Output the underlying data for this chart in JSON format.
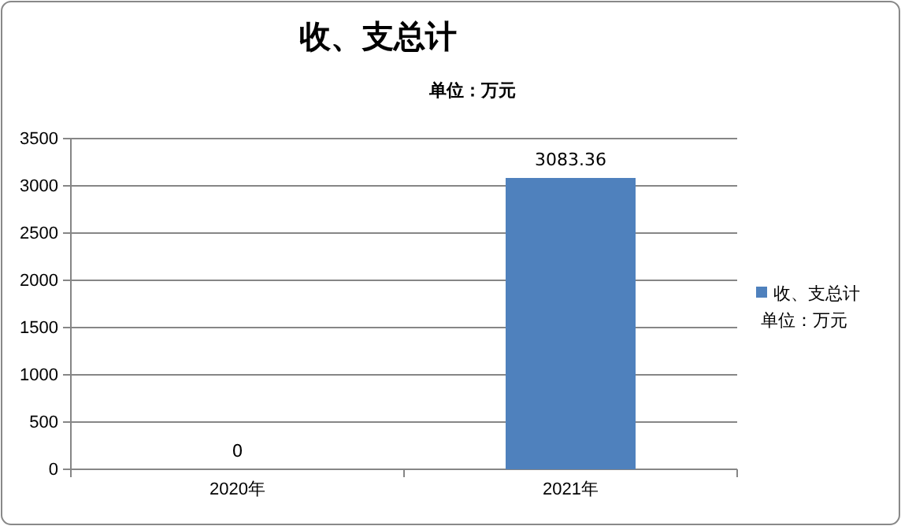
{
  "chart_data": {
    "type": "bar",
    "title": "收、支总计",
    "subtitle": "单位：万元",
    "categories": [
      "2020年",
      "2021年"
    ],
    "series": [
      {
        "name": "收、支总计单位：万元",
        "color": "#4f81bd",
        "values": [
          0,
          3083.36
        ]
      }
    ],
    "ylim": [
      0,
      3500
    ],
    "yticks": [
      0,
      500,
      1000,
      1500,
      2000,
      2500,
      3000,
      3500
    ],
    "grid": "y",
    "legend": "right",
    "data_labels": true
  }
}
